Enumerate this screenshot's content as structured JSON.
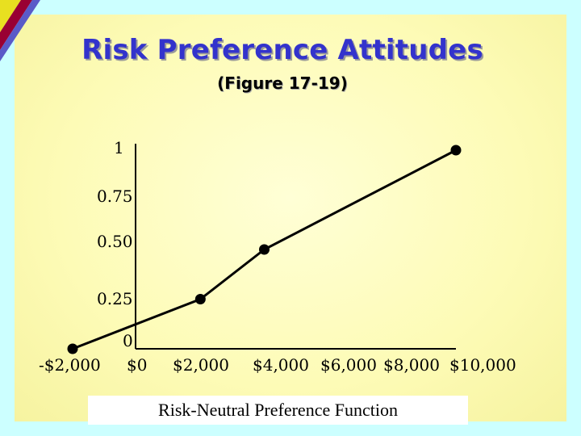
{
  "slide": {
    "title": "Risk Preference Attitudes",
    "subtitle": "(Figure 17-19)",
    "caption": "Risk-Neutral Preference Function",
    "colors": {
      "background": "#ccffff",
      "panel": "#fdfbb6",
      "title": "#3333cc"
    }
  },
  "chart_data": {
    "type": "line",
    "x": [
      -2000,
      2000,
      4000,
      10000
    ],
    "values": [
      0,
      0.25,
      0.5,
      1
    ],
    "x_tick_labels": [
      "-$2,000",
      "$0",
      "$2,000",
      "$4,000",
      "$6,000",
      "$8,000",
      "$10,000"
    ],
    "y_tick_labels": [
      "0",
      "0.25",
      "0.50",
      "0.75",
      "1"
    ],
    "xlim": [
      -2000,
      10000
    ],
    "ylim": [
      0,
      1
    ],
    "grid": false,
    "markers": true
  }
}
